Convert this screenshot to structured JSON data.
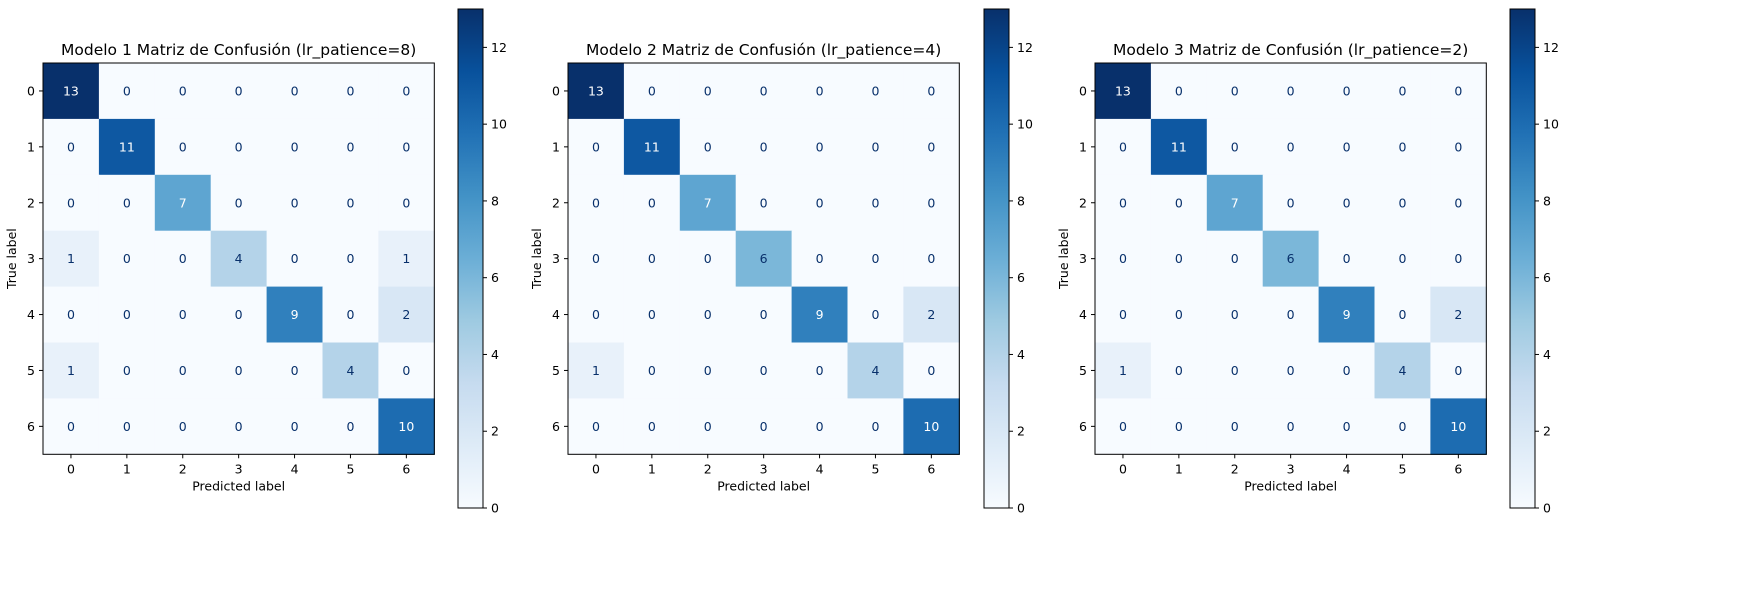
{
  "chart_data": [
    {
      "type": "heatmap",
      "title": "Modelo 1 Matriz de Confusión (lr_patience=8)",
      "xlabel": "Predicted label",
      "ylabel": "True label",
      "x_categories": [
        "0",
        "1",
        "2",
        "3",
        "4",
        "5",
        "6"
      ],
      "y_categories": [
        "0",
        "1",
        "2",
        "3",
        "4",
        "5",
        "6"
      ],
      "values": [
        [
          13,
          0,
          0,
          0,
          0,
          0,
          0
        ],
        [
          0,
          11,
          0,
          0,
          0,
          0,
          0
        ],
        [
          0,
          0,
          7,
          0,
          0,
          0,
          0
        ],
        [
          1,
          0,
          0,
          4,
          0,
          0,
          1
        ],
        [
          0,
          0,
          0,
          0,
          9,
          0,
          2
        ],
        [
          1,
          0,
          0,
          0,
          0,
          4,
          0
        ],
        [
          0,
          0,
          0,
          0,
          0,
          0,
          10
        ]
      ],
      "colorbar": {
        "min": 0,
        "max": 13,
        "ticks": [
          0,
          2,
          4,
          6,
          8,
          10,
          12
        ]
      },
      "colormap": "Blues"
    },
    {
      "type": "heatmap",
      "title": "Modelo 2 Matriz de Confusión (lr_patience=4)",
      "xlabel": "Predicted label",
      "ylabel": "True label",
      "x_categories": [
        "0",
        "1",
        "2",
        "3",
        "4",
        "5",
        "6"
      ],
      "y_categories": [
        "0",
        "1",
        "2",
        "3",
        "4",
        "5",
        "6"
      ],
      "values": [
        [
          13,
          0,
          0,
          0,
          0,
          0,
          0
        ],
        [
          0,
          11,
          0,
          0,
          0,
          0,
          0
        ],
        [
          0,
          0,
          7,
          0,
          0,
          0,
          0
        ],
        [
          0,
          0,
          0,
          6,
          0,
          0,
          0
        ],
        [
          0,
          0,
          0,
          0,
          9,
          0,
          2
        ],
        [
          1,
          0,
          0,
          0,
          0,
          4,
          0
        ],
        [
          0,
          0,
          0,
          0,
          0,
          0,
          10
        ]
      ],
      "colorbar": {
        "min": 0,
        "max": 13,
        "ticks": [
          0,
          2,
          4,
          6,
          8,
          10,
          12
        ]
      },
      "colormap": "Blues"
    },
    {
      "type": "heatmap",
      "title": "Modelo 3 Matriz de Confusión (lr_patience=2)",
      "xlabel": "Predicted label",
      "ylabel": "True label",
      "x_categories": [
        "0",
        "1",
        "2",
        "3",
        "4",
        "5",
        "6"
      ],
      "y_categories": [
        "0",
        "1",
        "2",
        "3",
        "4",
        "5",
        "6"
      ],
      "values": [
        [
          13,
          0,
          0,
          0,
          0,
          0,
          0
        ],
        [
          0,
          11,
          0,
          0,
          0,
          0,
          0
        ],
        [
          0,
          0,
          7,
          0,
          0,
          0,
          0
        ],
        [
          0,
          0,
          0,
          6,
          0,
          0,
          0
        ],
        [
          0,
          0,
          0,
          0,
          9,
          0,
          2
        ],
        [
          1,
          0,
          0,
          0,
          0,
          4,
          0
        ],
        [
          0,
          0,
          0,
          0,
          0,
          0,
          10
        ]
      ],
      "colorbar": {
        "min": 0,
        "max": 13,
        "ticks": [
          0,
          2,
          4,
          6,
          8,
          10,
          12
        ]
      },
      "colormap": "Blues"
    }
  ]
}
